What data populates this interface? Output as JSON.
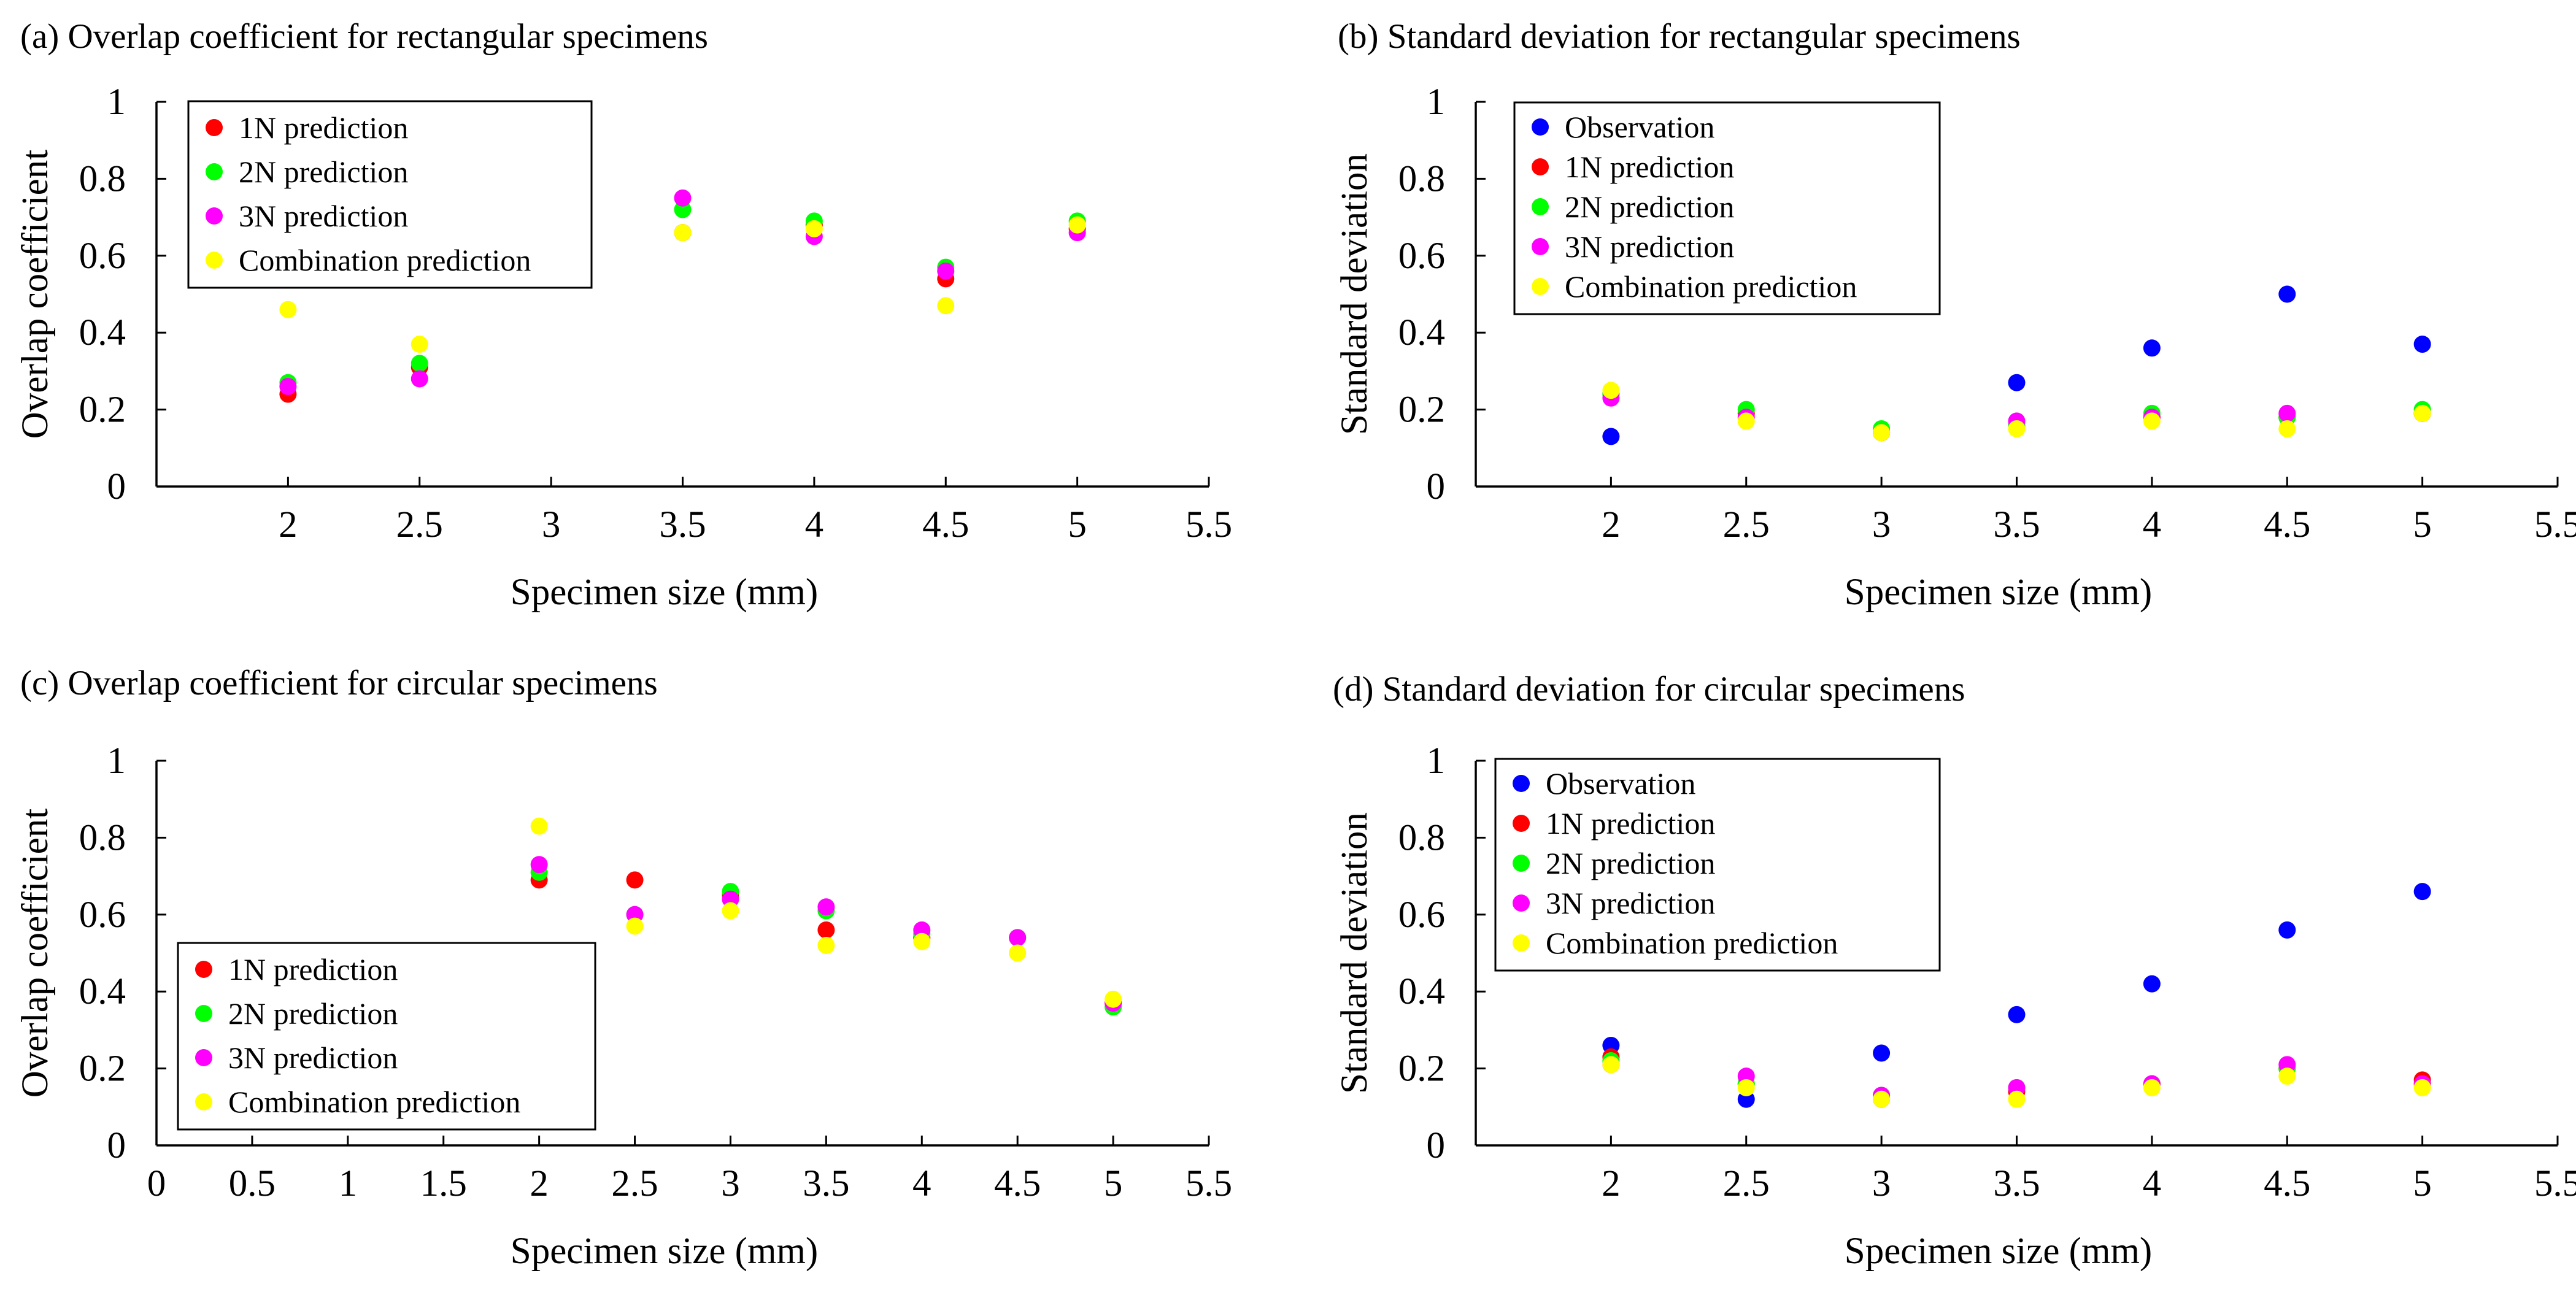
{
  "colors": {
    "observation": "#0000ff",
    "pred_1n": "#ff0000",
    "pred_2n": "#00ff00",
    "pred_3n": "#ff00ff",
    "combination": "#ffff00"
  },
  "chart_data": [
    {
      "type": "scatter",
      "title": "(a) Overlap coefficient for rectangular specimens",
      "xlabel": "Specimen size (mm)",
      "ylabel": "Overlap coefficient",
      "xlim": [
        1.5,
        5.5
      ],
      "ylim": [
        0,
        1
      ],
      "xticks": [
        2,
        2.5,
        3,
        3.5,
        4,
        4.5,
        5,
        5.5
      ],
      "xtick_labels": [
        "2",
        "2.5",
        "3",
        "3.5",
        "4",
        "4.5",
        "5",
        "5.5"
      ],
      "yticks": [
        0,
        0.2,
        0.4,
        0.6,
        0.8,
        1
      ],
      "ytick_labels": [
        "0",
        "0.2",
        "0.4",
        "0.6",
        "0.8",
        "1"
      ],
      "legend_position": "top-left",
      "series": [
        {
          "name": "1N prediction",
          "color_key": "pred_1n",
          "x": [
            2,
            2.5,
            3.5,
            4,
            4.5,
            5
          ],
          "y": [
            0.24,
            0.31,
            0.66,
            0.68,
            0.54,
            0.67
          ]
        },
        {
          "name": "2N prediction",
          "color_key": "pred_2n",
          "x": [
            2,
            2.5,
            3.5,
            4,
            4.5,
            5
          ],
          "y": [
            0.27,
            0.32,
            0.72,
            0.69,
            0.57,
            0.69
          ]
        },
        {
          "name": "3N prediction",
          "color_key": "pred_3n",
          "x": [
            2,
            2.5,
            3.5,
            4,
            4.5,
            5
          ],
          "y": [
            0.26,
            0.28,
            0.75,
            0.65,
            0.56,
            0.66
          ]
        },
        {
          "name": "Combination prediction",
          "color_key": "combination",
          "x": [
            2,
            2.5,
            3.5,
            4,
            4.5,
            5
          ],
          "y": [
            0.46,
            0.37,
            0.66,
            0.67,
            0.47,
            0.68
          ]
        }
      ]
    },
    {
      "type": "scatter",
      "title": "(b) Standard deviation for rectangular specimens",
      "xlabel": "Specimen size (mm)",
      "ylabel": "Standard deviation",
      "xlim": [
        1.5,
        5.5
      ],
      "ylim": [
        0,
        1
      ],
      "xticks": [
        2,
        2.5,
        3,
        3.5,
        4,
        4.5,
        5,
        5.5
      ],
      "xtick_labels": [
        "2",
        "2.5",
        "3",
        "3.5",
        "4",
        "4.5",
        "5",
        "5.5"
      ],
      "yticks": [
        0,
        0.2,
        0.4,
        0.6,
        0.8,
        1
      ],
      "ytick_labels": [
        "0",
        "0.2",
        "0.4",
        "0.6",
        "0.8",
        "1"
      ],
      "legend_position": "top-left",
      "series": [
        {
          "name": "Observation",
          "color_key": "observation",
          "x": [
            2,
            3.5,
            4,
            4.5,
            5
          ],
          "y": [
            0.13,
            0.27,
            0.36,
            0.5,
            0.37
          ]
        },
        {
          "name": "1N prediction",
          "color_key": "pred_1n",
          "x": [
            2,
            2.5,
            3,
            3.5,
            4,
            4.5,
            5
          ],
          "y": [
            0.24,
            0.19,
            0.14,
            0.16,
            0.18,
            0.18,
            0.19
          ]
        },
        {
          "name": "2N prediction",
          "color_key": "pred_2n",
          "x": [
            2,
            2.5,
            3,
            3.5,
            4,
            4.5,
            5
          ],
          "y": [
            0.24,
            0.2,
            0.15,
            0.16,
            0.19,
            0.18,
            0.2
          ]
        },
        {
          "name": "3N prediction",
          "color_key": "pred_3n",
          "x": [
            2,
            2.5,
            3,
            3.5,
            4,
            4.5,
            5
          ],
          "y": [
            0.23,
            0.18,
            0.14,
            0.17,
            0.18,
            0.19,
            0.19
          ]
        },
        {
          "name": "Combination prediction",
          "color_key": "combination",
          "x": [
            2,
            2.5,
            3,
            3.5,
            4,
            4.5,
            5
          ],
          "y": [
            0.25,
            0.17,
            0.14,
            0.15,
            0.17,
            0.15,
            0.19
          ]
        }
      ]
    },
    {
      "type": "scatter",
      "title": "(c) Overlap coefficient for circular specimens",
      "xlabel": "Specimen size (mm)",
      "ylabel": "Overlap coefficient",
      "xlim": [
        0,
        5.5
      ],
      "ylim": [
        0,
        1
      ],
      "xticks": [
        0,
        0.5,
        1,
        1.5,
        2,
        2.5,
        3,
        3.5,
        4,
        4.5,
        5,
        5.5
      ],
      "xtick_labels": [
        "0",
        "0.5",
        "1",
        "1.5",
        "2",
        "2.5",
        "3",
        "3.5",
        "4",
        "4.5",
        "5",
        "5.5"
      ],
      "yticks": [
        0,
        0.2,
        0.4,
        0.6,
        0.8,
        1
      ],
      "ytick_labels": [
        "0",
        "0.2",
        "0.4",
        "0.6",
        "0.8",
        "1"
      ],
      "legend_position": "bottom-left",
      "series": [
        {
          "name": "1N prediction",
          "color_key": "pred_1n",
          "x": [
            2,
            2.5,
            3,
            3.5,
            4,
            4.5,
            5
          ],
          "y": [
            0.69,
            0.69,
            0.65,
            0.56,
            0.54,
            0.54,
            0.37
          ]
        },
        {
          "name": "2N prediction",
          "color_key": "pred_2n",
          "x": [
            2,
            2.5,
            3,
            3.5,
            4,
            4.5,
            5
          ],
          "y": [
            0.71,
            0.6,
            0.66,
            0.61,
            0.55,
            0.54,
            0.36
          ]
        },
        {
          "name": "3N prediction",
          "color_key": "pred_3n",
          "x": [
            2,
            2.5,
            3,
            3.5,
            4,
            4.5,
            5
          ],
          "y": [
            0.73,
            0.6,
            0.64,
            0.62,
            0.56,
            0.54,
            0.37
          ]
        },
        {
          "name": "Combination prediction",
          "color_key": "combination",
          "x": [
            2,
            2.5,
            3,
            3.5,
            4,
            4.5,
            5
          ],
          "y": [
            0.83,
            0.57,
            0.61,
            0.52,
            0.53,
            0.5,
            0.38
          ]
        }
      ]
    },
    {
      "type": "scatter",
      "title": "(d) Standard deviation for circular specimens",
      "xlabel": "Specimen size (mm)",
      "ylabel": "Standard deviation",
      "xlim": [
        1.5,
        5.5
      ],
      "ylim": [
        0,
        1
      ],
      "xticks": [
        2,
        2.5,
        3,
        3.5,
        4,
        4.5,
        5,
        5.5
      ],
      "xtick_labels": [
        "2",
        "2.5",
        "3",
        "3.5",
        "4",
        "4.5",
        "5",
        "5.5"
      ],
      "yticks": [
        0,
        0.2,
        0.4,
        0.6,
        0.8,
        1
      ],
      "ytick_labels": [
        "0",
        "0.2",
        "0.4",
        "0.6",
        "0.8",
        "1"
      ],
      "legend_position": "top-left",
      "series": [
        {
          "name": "Observation",
          "color_key": "observation",
          "x": [
            2,
            2.5,
            3,
            3.5,
            4,
            4.5,
            5
          ],
          "y": [
            0.26,
            0.12,
            0.24,
            0.34,
            0.42,
            0.56,
            0.66
          ]
        },
        {
          "name": "1N prediction",
          "color_key": "pred_1n",
          "x": [
            2,
            2.5,
            3,
            3.5,
            4,
            4.5,
            5
          ],
          "y": [
            0.23,
            0.16,
            0.12,
            0.14,
            0.16,
            0.2,
            0.17
          ]
        },
        {
          "name": "2N prediction",
          "color_key": "pred_2n",
          "x": [
            2,
            2.5,
            3,
            3.5,
            4,
            4.5,
            5
          ],
          "y": [
            0.22,
            0.16,
            0.13,
            0.15,
            0.16,
            0.2,
            0.16
          ]
        },
        {
          "name": "3N prediction",
          "color_key": "pred_3n",
          "x": [
            2,
            2.5,
            3,
            3.5,
            4,
            4.5,
            5
          ],
          "y": [
            0.21,
            0.18,
            0.13,
            0.15,
            0.16,
            0.21,
            0.16
          ]
        },
        {
          "name": "Combination prediction",
          "color_key": "combination",
          "x": [
            2,
            2.5,
            3,
            3.5,
            4,
            4.5,
            5
          ],
          "y": [
            0.21,
            0.15,
            0.12,
            0.12,
            0.15,
            0.18,
            0.15
          ]
        }
      ]
    }
  ]
}
